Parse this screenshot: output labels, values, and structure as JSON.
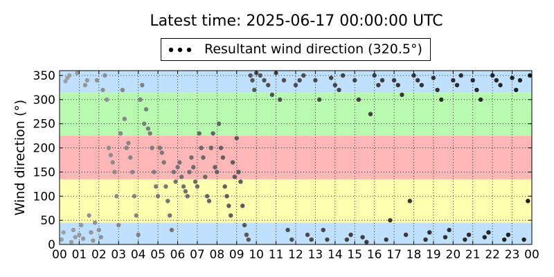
{
  "title": "Latest time: 2025-06-17 00:00:00 UTC",
  "legend": {
    "label": "Resultant wind direction (320.5°)",
    "marker": "point"
  },
  "chart_data": {
    "type": "scatter",
    "title": "Latest time: 2025-06-17 00:00:00 UTC",
    "xlabel": "",
    "ylabel": "Wind direction (°)",
    "xlim": [
      0,
      24
    ],
    "ylim": [
      0,
      360
    ],
    "x_ticks": [
      "00",
      "01",
      "02",
      "03",
      "04",
      "05",
      "06",
      "07",
      "08",
      "09",
      "10",
      "11",
      "12",
      "13",
      "14",
      "15",
      "16",
      "17",
      "18",
      "19",
      "20",
      "21",
      "22",
      "23",
      "00"
    ],
    "y_ticks": [
      0,
      50,
      100,
      150,
      200,
      250,
      300,
      350
    ],
    "grid": true,
    "legend_position": "top-center",
    "bands": [
      {
        "from": 0,
        "to": 45,
        "color": "#bfe0ff"
      },
      {
        "from": 45,
        "to": 135,
        "color": "#ffffb0"
      },
      {
        "from": 135,
        "to": 225,
        "color": "#ffb6b6"
      },
      {
        "from": 225,
        "to": 315,
        "color": "#b8fbb0"
      },
      {
        "from": 315,
        "to": 360,
        "color": "#bfe0ff"
      }
    ],
    "series": [
      {
        "name": "Resultant wind direction",
        "color_range": [
          "#aaaaaa",
          "#000000"
        ],
        "points": [
          [
            0.1,
            10
          ],
          [
            0.2,
            25
          ],
          [
            0.3,
            338
          ],
          [
            0.4,
            345
          ],
          [
            0.5,
            350
          ],
          [
            0.6,
            5
          ],
          [
            0.7,
            30
          ],
          [
            0.8,
            15
          ],
          [
            0.9,
            355
          ],
          [
            1.0,
            20
          ],
          [
            1.1,
            40
          ],
          [
            1.2,
            12
          ],
          [
            1.3,
            330
          ],
          [
            1.4,
            340
          ],
          [
            1.5,
            60
          ],
          [
            1.6,
            25
          ],
          [
            1.7,
            8
          ],
          [
            1.8,
            45
          ],
          [
            1.9,
            340
          ],
          [
            2.0,
            30
          ],
          [
            2.1,
            15
          ],
          [
            2.2,
            320
          ],
          [
            2.3,
            350
          ],
          [
            2.4,
            300
          ],
          [
            2.5,
            200
          ],
          [
            2.6,
            185
          ],
          [
            2.7,
            170
          ],
          [
            2.8,
            150
          ],
          [
            2.9,
            100
          ],
          [
            3.0,
            40
          ],
          [
            3.1,
            230
          ],
          [
            3.2,
            320
          ],
          [
            3.3,
            260
          ],
          [
            3.4,
            200
          ],
          [
            3.5,
            210
          ],
          [
            3.6,
            180
          ],
          [
            3.7,
            150
          ],
          [
            3.8,
            100
          ],
          [
            3.9,
            60
          ],
          [
            4.0,
            20
          ],
          [
            4.1,
            300
          ],
          [
            4.2,
            330
          ],
          [
            4.3,
            250
          ],
          [
            4.4,
            280
          ],
          [
            4.5,
            240
          ],
          [
            4.6,
            230
          ],
          [
            4.7,
            200
          ],
          [
            4.8,
            150
          ],
          [
            4.9,
            120
          ],
          [
            5.0,
            100
          ],
          [
            5.1,
            200
          ],
          [
            5.2,
            190
          ],
          [
            5.3,
            170
          ],
          [
            5.4,
            120
          ],
          [
            5.5,
            90
          ],
          [
            5.6,
            60
          ],
          [
            5.7,
            30
          ],
          [
            5.8,
            150
          ],
          [
            5.9,
            130
          ],
          [
            6.0,
            160
          ],
          [
            6.1,
            170
          ],
          [
            6.2,
            140
          ],
          [
            6.3,
            120
          ],
          [
            6.4,
            110
          ],
          [
            6.5,
            100
          ],
          [
            6.6,
            150
          ],
          [
            6.7,
            180
          ],
          [
            6.8,
            160
          ],
          [
            6.9,
            130
          ],
          [
            7.0,
            120
          ],
          [
            7.1,
            230
          ],
          [
            7.2,
            200
          ],
          [
            7.3,
            180
          ],
          [
            7.4,
            140
          ],
          [
            7.5,
            100
          ],
          [
            7.6,
            90
          ],
          [
            7.7,
            200
          ],
          [
            7.8,
            230
          ],
          [
            7.9,
            160
          ],
          [
            8.0,
            150
          ],
          [
            8.1,
            250
          ],
          [
            8.2,
            200
          ],
          [
            8.3,
            180
          ],
          [
            8.4,
            120
          ],
          [
            8.5,
            100
          ],
          [
            8.6,
            80
          ],
          [
            8.7,
            60
          ],
          [
            8.8,
            170
          ],
          [
            8.9,
            140
          ],
          [
            9.0,
            220
          ],
          [
            9.1,
            150
          ],
          [
            9.2,
            130
          ],
          [
            9.3,
            80
          ],
          [
            9.4,
            40
          ],
          [
            9.5,
            20
          ],
          [
            9.6,
            10
          ],
          [
            9.7,
            350
          ],
          [
            9.8,
            340
          ],
          [
            9.9,
            320
          ],
          [
            10.0,
            355
          ],
          [
            10.2,
            350
          ],
          [
            10.4,
            340
          ],
          [
            10.6,
            330
          ],
          [
            10.8,
            310
          ],
          [
            11.0,
            355
          ],
          [
            11.2,
            300
          ],
          [
            11.4,
            340
          ],
          [
            11.6,
            30
          ],
          [
            11.8,
            10
          ],
          [
            12.0,
            330
          ],
          [
            12.2,
            340
          ],
          [
            12.4,
            350
          ],
          [
            12.6,
            20
          ],
          [
            12.8,
            10
          ],
          [
            13.0,
            340
          ],
          [
            13.2,
            300
          ],
          [
            13.4,
            30
          ],
          [
            13.6,
            10
          ],
          [
            13.8,
            345
          ],
          [
            14.0,
            330
          ],
          [
            14.2,
            320
          ],
          [
            14.4,
            350
          ],
          [
            14.6,
            10
          ],
          [
            14.8,
            20
          ],
          [
            15.0,
            340
          ],
          [
            15.2,
            300
          ],
          [
            15.4,
            15
          ],
          [
            15.6,
            5
          ],
          [
            15.8,
            270
          ],
          [
            16.0,
            350
          ],
          [
            16.2,
            330
          ],
          [
            16.4,
            340
          ],
          [
            16.6,
            10
          ],
          [
            16.8,
            50
          ],
          [
            17.0,
            340
          ],
          [
            17.2,
            330
          ],
          [
            17.4,
            310
          ],
          [
            17.6,
            20
          ],
          [
            17.8,
            90
          ],
          [
            18.0,
            350
          ],
          [
            18.2,
            340
          ],
          [
            18.4,
            330
          ],
          [
            18.6,
            10
          ],
          [
            18.8,
            25
          ],
          [
            19.0,
            345
          ],
          [
            19.2,
            320
          ],
          [
            19.4,
            300
          ],
          [
            19.6,
            15
          ],
          [
            19.8,
            30
          ],
          [
            20.0,
            340
          ],
          [
            20.2,
            330
          ],
          [
            20.4,
            350
          ],
          [
            20.6,
            10
          ],
          [
            20.8,
            20
          ],
          [
            21.0,
            340
          ],
          [
            21.2,
            320
          ],
          [
            21.4,
            300
          ],
          [
            21.6,
            15
          ],
          [
            21.8,
            25
          ],
          [
            22.0,
            350
          ],
          [
            22.2,
            340
          ],
          [
            22.4,
            330
          ],
          [
            22.6,
            10
          ],
          [
            22.8,
            20
          ],
          [
            23.0,
            345
          ],
          [
            23.2,
            320
          ],
          [
            23.4,
            340
          ],
          [
            23.6,
            10
          ],
          [
            23.8,
            90
          ],
          [
            23.9,
            350
          ]
        ]
      }
    ]
  }
}
